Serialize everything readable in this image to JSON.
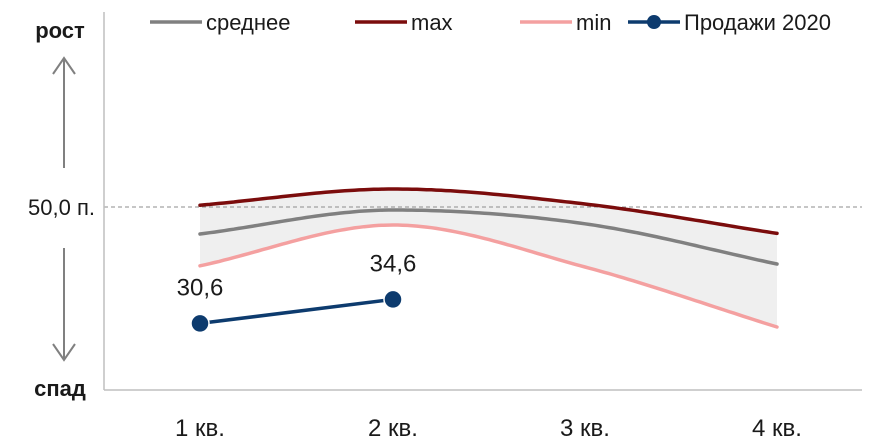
{
  "chart_data": {
    "type": "line",
    "categories": [
      "1 кв.",
      "2 кв.",
      "3 кв.",
      "4 кв."
    ],
    "ylim": [
      20,
      80
    ],
    "reference_line": {
      "value": 50,
      "label": "50,0 п."
    },
    "up_label": "рост",
    "down_label": "спад",
    "legend_position": "top",
    "grid": false,
    "series": [
      {
        "name": "среднее",
        "values": [
          45.5,
          49.5,
          47.2,
          40.5
        ],
        "color": "#808080",
        "smooth": true
      },
      {
        "name": "max",
        "values": [
          50.3,
          53.0,
          50.5,
          45.6
        ],
        "color": "#7B0C0C",
        "smooth": true
      },
      {
        "name": "min",
        "values": [
          40.2,
          47.0,
          40.0,
          30.0
        ],
        "color": "#F4A0A0",
        "smooth": true
      },
      {
        "name": "Продажи 2020",
        "values": [
          30.6,
          34.6,
          null,
          null
        ],
        "color": "#0D3B6E",
        "markers": true,
        "data_labels": [
          "30,6",
          "34,6",
          "",
          ""
        ]
      }
    ],
    "band": {
      "between": [
        "max",
        "min"
      ],
      "color": "#EFEFEF"
    }
  }
}
